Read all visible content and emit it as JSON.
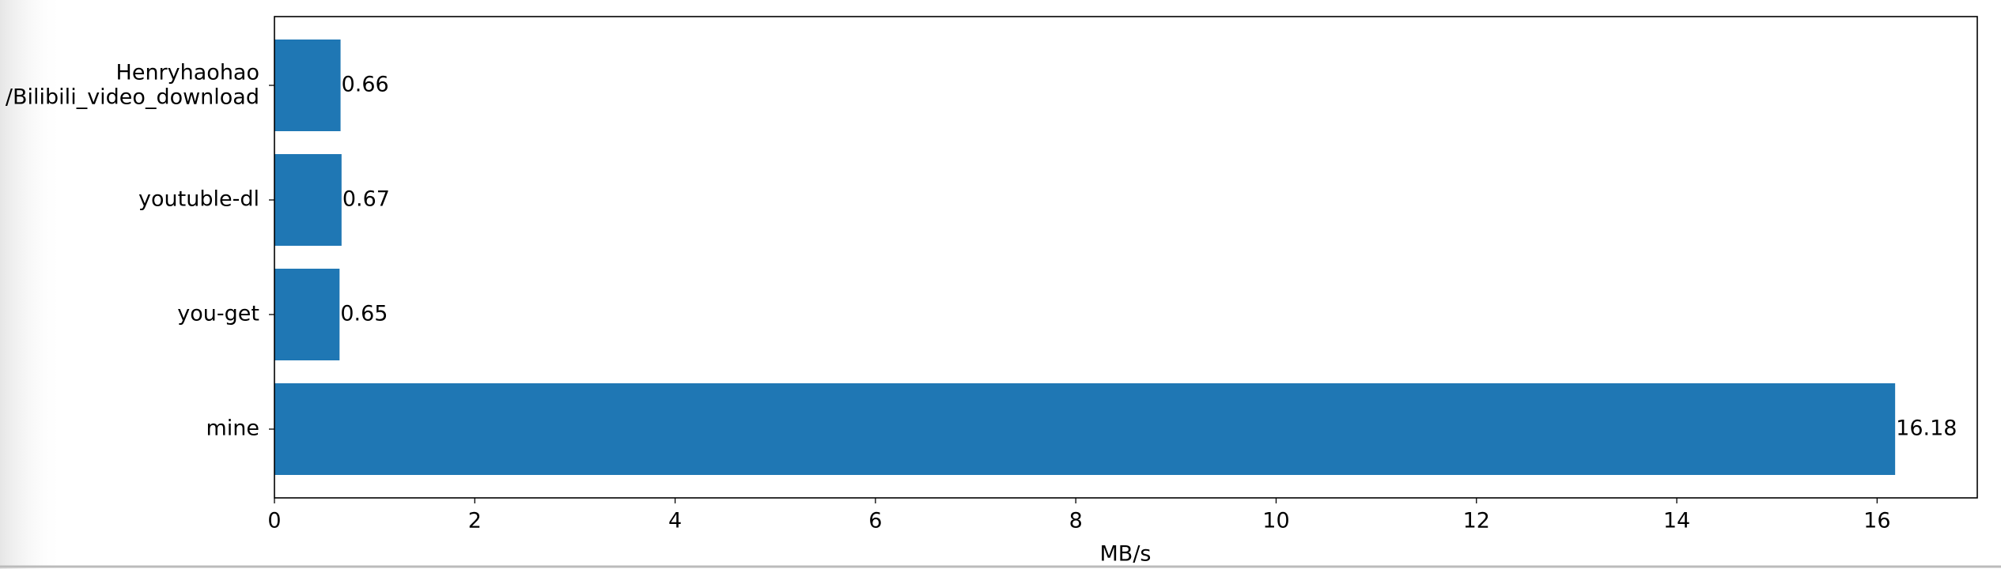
{
  "chart_data": {
    "type": "barh",
    "categories": [
      "mine",
      "you-get",
      "youtuble-dl",
      "Henryhaohao\n/Bilibili_video_download"
    ],
    "values": [
      16.18,
      0.65,
      0.67,
      0.66
    ],
    "color": "#1f77b4",
    "xlabel": "MB/s",
    "xlim": [
      0,
      17
    ],
    "xticks": [
      0,
      2,
      4,
      6,
      8,
      10,
      12,
      14,
      16
    ],
    "data_labels": true
  }
}
